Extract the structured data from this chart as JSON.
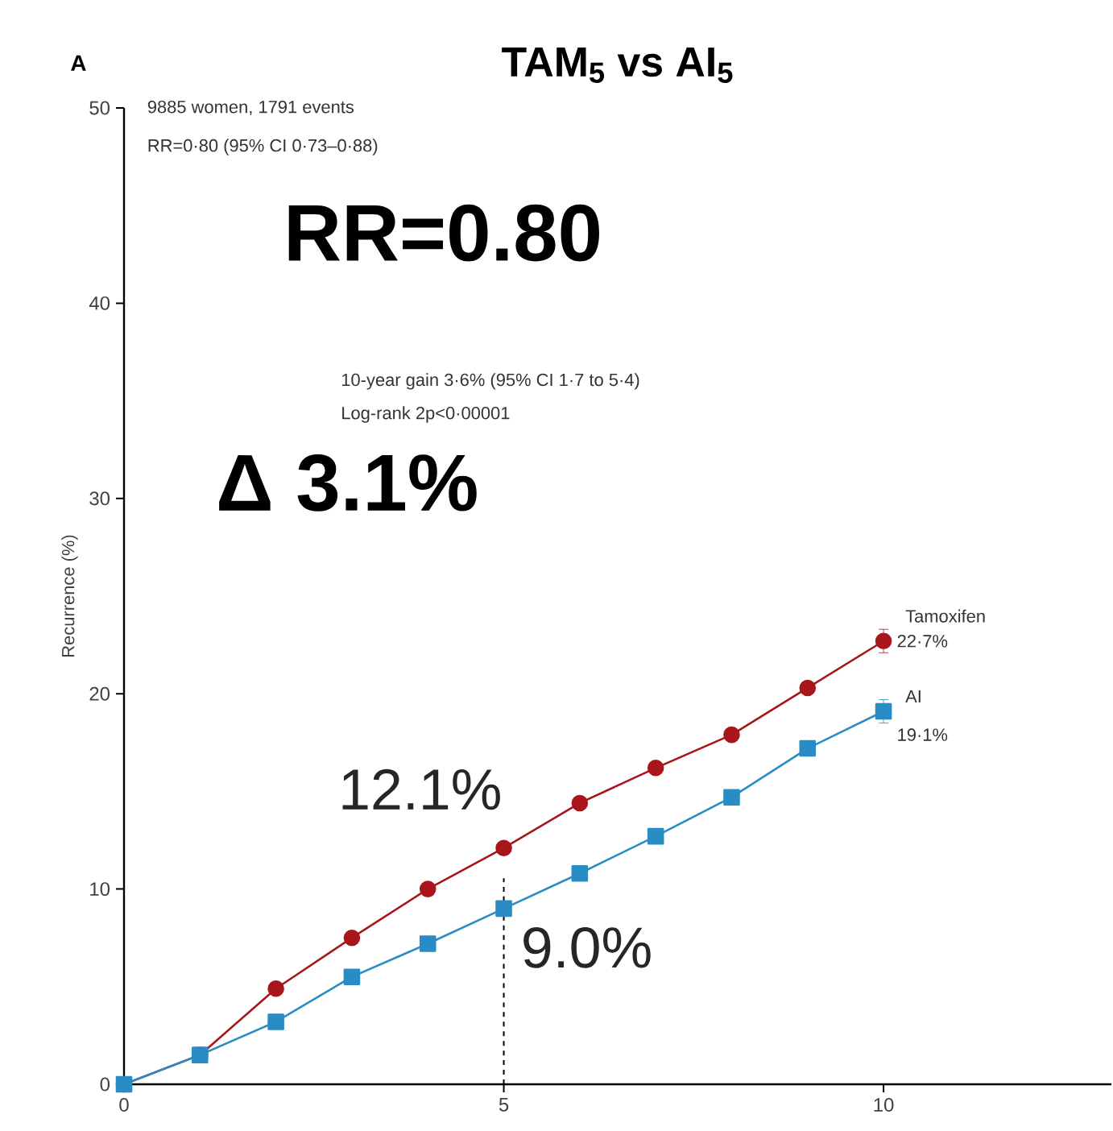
{
  "chart_data": {
    "type": "line",
    "title": "TAM$_{5}$ vs AI$_{5}$",
    "ylabel": "Recurrence (%)",
    "x": [
      0,
      1,
      2,
      3,
      4,
      5,
      6,
      7,
      8,
      9,
      10
    ],
    "series": [
      {
        "name": "Tamoxifen",
        "color": "#a8161c",
        "marker": "circle",
        "values": [
          0,
          1.5,
          4.9,
          7.5,
          10.0,
          12.1,
          14.4,
          16.2,
          17.9,
          20.3,
          22.7
        ],
        "errors": [
          null,
          null,
          null,
          null,
          null,
          null,
          null,
          null,
          null,
          null,
          0.6
        ]
      },
      {
        "name": "AI",
        "color": "#2a8cc4",
        "marker": "square",
        "values": [
          0,
          1.5,
          3.2,
          5.5,
          7.2,
          9.0,
          10.8,
          12.7,
          14.7,
          17.2,
          19.1
        ],
        "errors": [
          null,
          null,
          null,
          null,
          null,
          null,
          null,
          null,
          null,
          null,
          0.6
        ]
      }
    ],
    "xlim": [
      0,
      13
    ],
    "ylim": [
      0,
      50
    ],
    "xticks": [
      0,
      5,
      10
    ],
    "yticks": [
      0,
      10,
      20,
      30,
      40,
      50
    ],
    "ref_lines": [
      {
        "axis": "x",
        "value": 5,
        "line_style": "dashed",
        "color": "#000000"
      }
    ],
    "annotations": [
      "A",
      "9885 women, 1791 events",
      "RR=0·80 (95% CI 0·73–0·88)",
      "RR=0.80",
      "10-year gain 3·6% (95% CI 1·7 to 5·4)",
      "Log-rank 2p<0·00001",
      "Δ 3.1%",
      "12.1%",
      "9.0%",
      "22·7%",
      "19·1%"
    ],
    "grid": false,
    "line_style": "solid"
  }
}
